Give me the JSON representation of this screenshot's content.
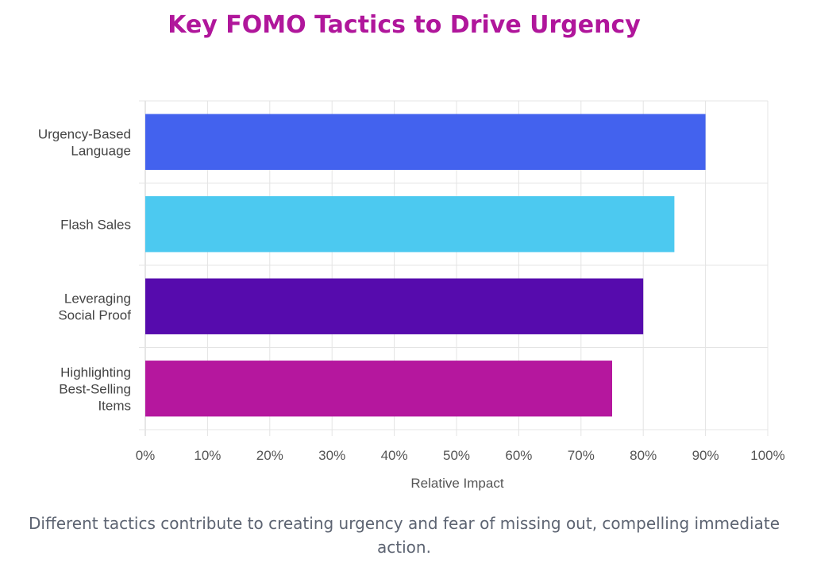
{
  "page": {
    "title": "Key FOMO Tactics to Drive Urgency",
    "caption": "Different tactics contribute to creating urgency and fear of missing out, compelling immediate action."
  },
  "chart_data": {
    "type": "bar",
    "orientation": "horizontal",
    "title": "Key FOMO Tactics to Drive Urgency",
    "xlabel": "Relative Impact",
    "ylabel": "",
    "xlim": [
      0,
      100
    ],
    "x_ticks": [
      "0%",
      "10%",
      "20%",
      "30%",
      "40%",
      "50%",
      "60%",
      "70%",
      "80%",
      "90%",
      "100%"
    ],
    "grid": true,
    "categories": [
      [
        "Urgency-Based",
        "Language"
      ],
      [
        "Flash Sales"
      ],
      [
        "Leveraging",
        "Social Proof"
      ],
      [
        "Highlighting",
        "Best-Selling",
        "Items"
      ]
    ],
    "values": [
      90,
      85,
      80,
      75
    ],
    "colors": [
      "#4362ee",
      "#4cc9f0",
      "#560bad",
      "#b5179e"
    ]
  }
}
